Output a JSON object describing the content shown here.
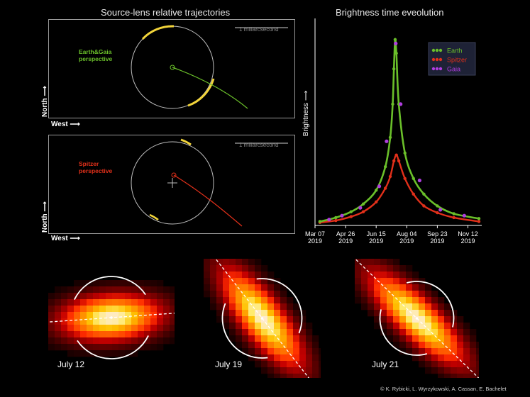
{
  "trajectories": {
    "title": "Source-lens relative trajectories",
    "scale_label": "1 miliarcsecond",
    "top_panel": {
      "perspective": "Earth&Gaia\nperspective",
      "color": "#6abf2a"
    },
    "bottom_panel": {
      "perspective": "Spitzer\nperspective",
      "color": "#e2301a"
    },
    "north_label": "North",
    "west_label": "West",
    "arrow": "⟶"
  },
  "lightcurve_title": "Brightness time eveolution",
  "chart_data": {
    "type": "line",
    "title": "Brightness time eveolution",
    "xlabel": "",
    "ylabel": "Brightness",
    "x_ticks": [
      "Mar 07\n2019",
      "Apr 26\n2019",
      "Jun 15\n2019",
      "Aug 04\n2019",
      "Sep 23\n2019",
      "Nov 12\n2019"
    ],
    "x_tick_dates": [
      "2019-03-07",
      "2019-04-26",
      "2019-06-15",
      "2019-08-04",
      "2019-09-23",
      "2019-11-12"
    ],
    "xlim": [
      "2019-03-07",
      "2019-11-30"
    ],
    "ylim": [
      0,
      1
    ],
    "legend_placement": "top-right",
    "series": [
      {
        "name": "Earth",
        "color": "#6abf2a",
        "style": "line+markers",
        "x": [
          "2019-03-15",
          "2019-04-10",
          "2019-05-05",
          "2019-05-25",
          "2019-06-15",
          "2019-06-30",
          "2019-07-08",
          "2019-07-12",
          "2019-07-14",
          "2019-07-16",
          "2019-07-18",
          "2019-07-22",
          "2019-08-01",
          "2019-08-15",
          "2019-09-01",
          "2019-09-23",
          "2019-10-20",
          "2019-11-30"
        ],
        "y": [
          0.02,
          0.04,
          0.07,
          0.11,
          0.18,
          0.3,
          0.45,
          0.62,
          0.8,
          0.95,
          0.88,
          0.62,
          0.37,
          0.24,
          0.16,
          0.1,
          0.06,
          0.035
        ]
      },
      {
        "name": "Spitzer",
        "color": "#e2301a",
        "style": "line+markers",
        "x": [
          "2019-03-15",
          "2019-04-10",
          "2019-05-05",
          "2019-05-25",
          "2019-06-15",
          "2019-06-30",
          "2019-07-08",
          "2019-07-14",
          "2019-07-18",
          "2019-07-22",
          "2019-08-01",
          "2019-08-15",
          "2019-09-01",
          "2019-09-23",
          "2019-10-20",
          "2019-11-30"
        ],
        "y": [
          0.015,
          0.025,
          0.045,
          0.07,
          0.12,
          0.19,
          0.25,
          0.33,
          0.36,
          0.33,
          0.24,
          0.16,
          0.1,
          0.065,
          0.04,
          0.02
        ]
      },
      {
        "name": "Gaia",
        "color": "#b03de0",
        "style": "markers",
        "x": [
          "2019-03-30",
          "2019-04-20",
          "2019-05-20",
          "2019-06-20",
          "2019-07-02",
          "2019-07-17",
          "2019-07-25",
          "2019-08-25",
          "2019-09-28",
          "2019-11-06"
        ],
        "y": [
          0.03,
          0.05,
          0.09,
          0.2,
          0.43,
          0.93,
          0.62,
          0.23,
          0.08,
          0.05
        ]
      }
    ]
  },
  "frames": [
    {
      "date": "July 12"
    },
    {
      "date": "July 19"
    },
    {
      "date": "July 21"
    }
  ],
  "credit": "© K. Rybicki, L. Wyrzykowski, A. Cassan, E. Bachelet"
}
